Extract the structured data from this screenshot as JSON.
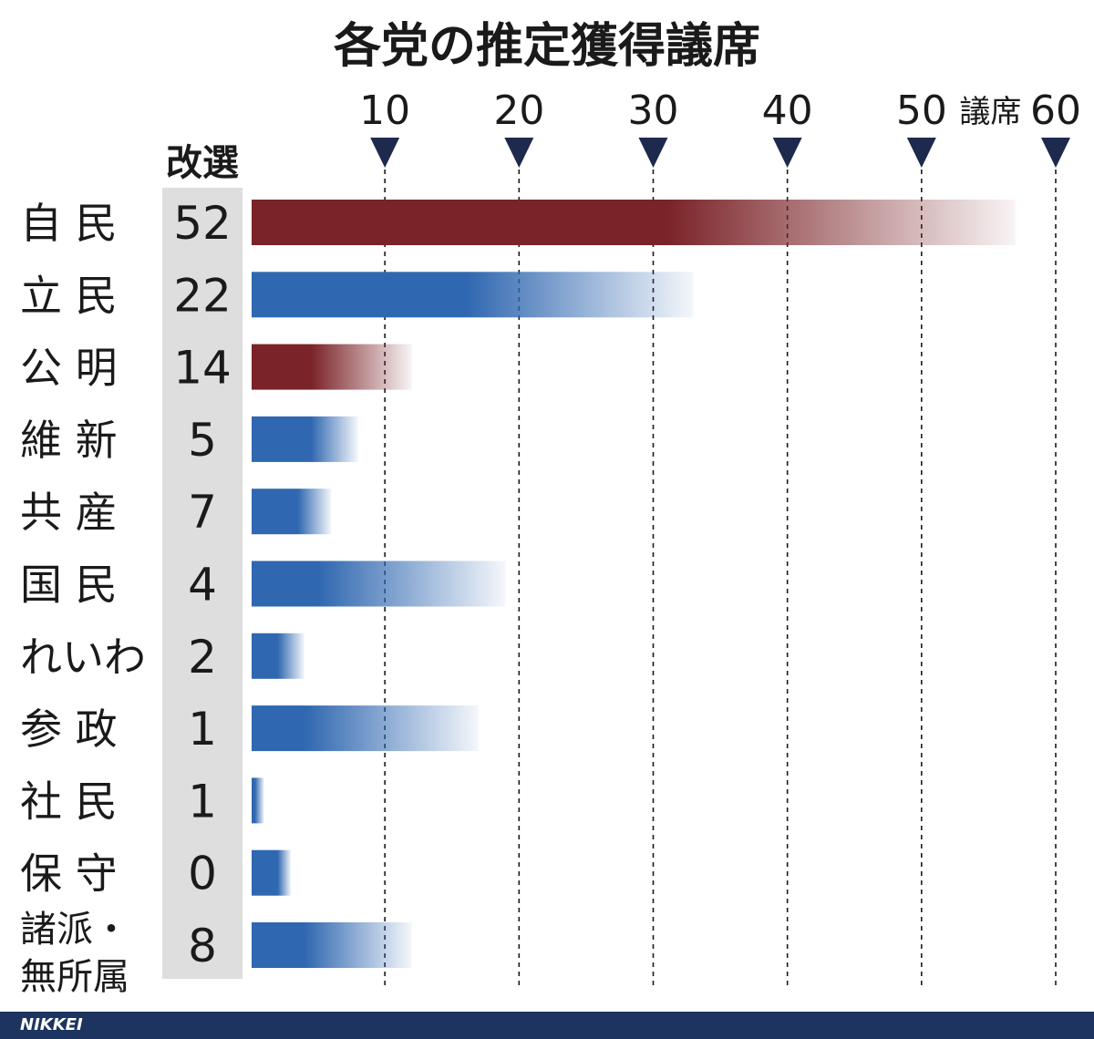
{
  "chart_data": {
    "type": "bar",
    "title": "各党の推定獲得議席",
    "x_unit_label": "議席",
    "xticks": [
      10,
      20,
      30,
      40,
      50,
      60
    ],
    "xlim": [
      0,
      60
    ],
    "incumbent_header": "改選",
    "grid": "vertical-dashed",
    "categories": [
      {
        "label": [
          "自 民"
        ],
        "incumbent": "52",
        "low": 31,
        "high": 57,
        "color": "#7a2328"
      },
      {
        "label": [
          "立 民"
        ],
        "incumbent": "22",
        "low": 16,
        "high": 33,
        "color": "#2f67b0"
      },
      {
        "label": [
          "公 明"
        ],
        "incumbent": "14",
        "low": 4.5,
        "high": 12,
        "color": "#7a2328"
      },
      {
        "label": [
          "維 新"
        ],
        "incumbent": "5",
        "low": 4.5,
        "high": 8,
        "color": "#2f67b0"
      },
      {
        "label": [
          "共 産"
        ],
        "incumbent": "7",
        "low": 3.5,
        "high": 6,
        "color": "#2f67b0"
      },
      {
        "label": [
          "国 民"
        ],
        "incumbent": "4",
        "low": 5,
        "high": 19,
        "color": "#2f67b0"
      },
      {
        "label": [
          "れいわ"
        ],
        "incumbent": "2",
        "low": 2,
        "high": 4,
        "color": "#2f67b0"
      },
      {
        "label": [
          "参 政"
        ],
        "incumbent": "1",
        "low": 4,
        "high": 17,
        "color": "#2f67b0"
      },
      {
        "label": [
          "社 民"
        ],
        "incumbent": "1",
        "low": 0.3,
        "high": 1,
        "color": "#2f67b0"
      },
      {
        "label": [
          "保 守"
        ],
        "incumbent": "0",
        "low": 2,
        "high": 3,
        "color": "#2f67b0"
      },
      {
        "label": [
          "諸派・",
          "無所属"
        ],
        "incumbent": "8",
        "low": 4,
        "high": 12,
        "color": "#2f67b0"
      }
    ]
  },
  "footer": {
    "logo": "NIKKEI"
  }
}
